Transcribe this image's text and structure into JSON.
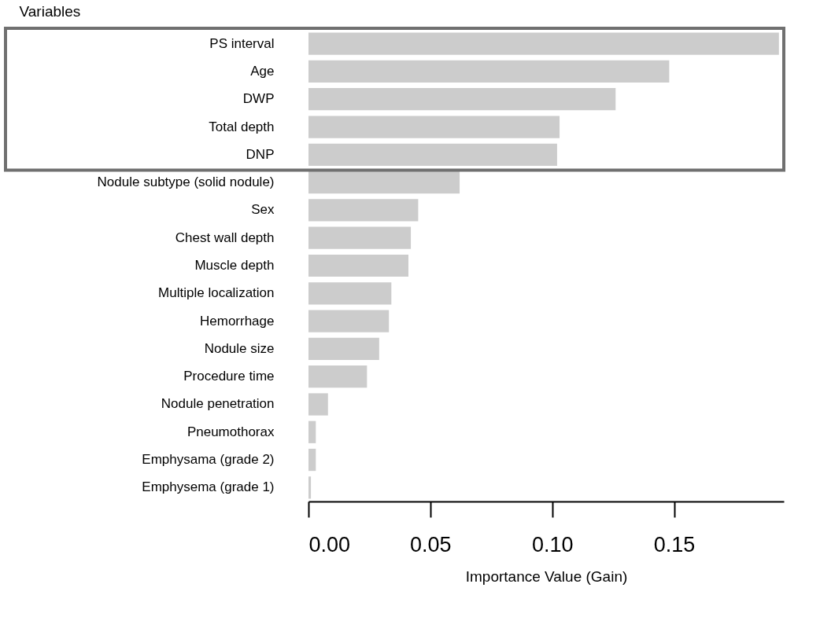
{
  "chart_data": {
    "type": "bar",
    "orientation": "horizontal",
    "ylabel": "Variables",
    "xlabel": "Importance Value (Gain)",
    "categories": [
      "PS interval",
      "Age",
      "DWP",
      "Total depth",
      "DNP",
      "Nodule subtype (solid nodule)",
      "Sex",
      "Chest wall depth",
      "Muscle depth",
      "Multiple localization",
      "Hemorrhage",
      "Nodule size",
      "Procedure time",
      "Nodule penetration",
      "Pneumothorax",
      "Emphysama (grade 2)",
      "Emphysema (grade 1)"
    ],
    "values": [
      0.193,
      0.148,
      0.126,
      0.103,
      0.102,
      0.062,
      0.045,
      0.042,
      0.041,
      0.034,
      0.033,
      0.029,
      0.024,
      0.008,
      0.003,
      0.003,
      0.001
    ],
    "color": "#cccccc",
    "xlim": [
      0,
      0.195
    ],
    "xticks": [
      {
        "value": 0,
        "label": "0.00"
      },
      {
        "value": 0.05,
        "label": "0.05"
      },
      {
        "value": 0.1,
        "label": "0.10"
      },
      {
        "value": 0.15,
        "label": "0.15"
      }
    ],
    "grid": false
  }
}
